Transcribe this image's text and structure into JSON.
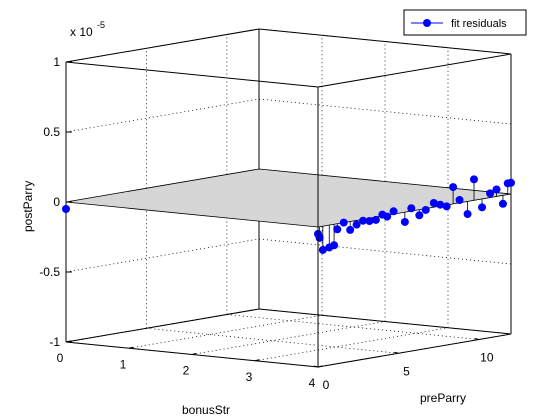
{
  "chart_data": {
    "type": "scatter",
    "title": "",
    "exponent_label": "x 10",
    "exponent_power": "-5",
    "xlabel": "bonusStr",
    "ylabel": "preParry",
    "zlabel": "postParry",
    "xlim": [
      0,
      4
    ],
    "ylim": [
      0,
      12
    ],
    "zlim": [
      -1,
      1
    ],
    "xticks": [
      "0",
      "1",
      "2",
      "3",
      "4"
    ],
    "yticks": [
      "0",
      "5",
      "10"
    ],
    "zticks": [
      "-1",
      "-0.5",
      "0",
      "0.5",
      "1"
    ],
    "grid": true,
    "legend_position": "top-right",
    "series": [
      {
        "name": "fit residuals",
        "color": "#0000ff",
        "marker": "circle",
        "points": [
          {
            "x": 0,
            "y": 0,
            "z": -0.05
          },
          {
            "x": 4,
            "y": 0,
            "z": -0.05
          },
          {
            "x": 4,
            "y": 0.1,
            "z": -0.08
          },
          {
            "x": 4,
            "y": 0.3,
            "z": -0.17
          },
          {
            "x": 4,
            "y": 0.7,
            "z": -0.16
          },
          {
            "x": 4,
            "y": 1.0,
            "z": -0.15
          },
          {
            "x": 4,
            "y": 1.2,
            "z": -0.04
          },
          {
            "x": 4,
            "y": 1.6,
            "z": 0.0
          },
          {
            "x": 4,
            "y": 2.0,
            "z": -0.06
          },
          {
            "x": 4,
            "y": 2.4,
            "z": -0.03
          },
          {
            "x": 4,
            "y": 2.8,
            "z": -0.01
          },
          {
            "x": 4,
            "y": 3.2,
            "z": -0.02
          },
          {
            "x": 4,
            "y": 3.6,
            "z": -0.02
          },
          {
            "x": 4,
            "y": 4.0,
            "z": 0.01
          },
          {
            "x": 4,
            "y": 4.3,
            "z": -0.01
          },
          {
            "x": 4,
            "y": 4.7,
            "z": 0.02
          },
          {
            "x": 4,
            "y": 5.4,
            "z": -0.07
          },
          {
            "x": 4,
            "y": 5.8,
            "z": 0.02
          },
          {
            "x": 4,
            "y": 6.3,
            "z": -0.04
          },
          {
            "x": 4,
            "y": 6.7,
            "z": -0.01
          },
          {
            "x": 4,
            "y": 7.2,
            "z": 0.03
          },
          {
            "x": 4,
            "y": 7.6,
            "z": 0.01
          },
          {
            "x": 4,
            "y": 8.0,
            "z": -0.01
          },
          {
            "x": 4,
            "y": 8.4,
            "z": 0.12
          },
          {
            "x": 4,
            "y": 8.8,
            "z": 0.02
          },
          {
            "x": 4,
            "y": 9.3,
            "z": -0.09
          },
          {
            "x": 4,
            "y": 9.7,
            "z": 0.15
          },
          {
            "x": 4,
            "y": 10.2,
            "z": -0.06
          },
          {
            "x": 4,
            "y": 10.7,
            "z": 0.03
          },
          {
            "x": 4,
            "y": 11.1,
            "z": 0.05
          },
          {
            "x": 4,
            "y": 11.5,
            "z": -0.06
          },
          {
            "x": 4,
            "y": 11.8,
            "z": 0.08
          },
          {
            "x": 4,
            "y": 12.0,
            "z": 0.08
          }
        ]
      }
    ],
    "surface": {
      "z": 0,
      "color": "#d6d6d6"
    }
  }
}
